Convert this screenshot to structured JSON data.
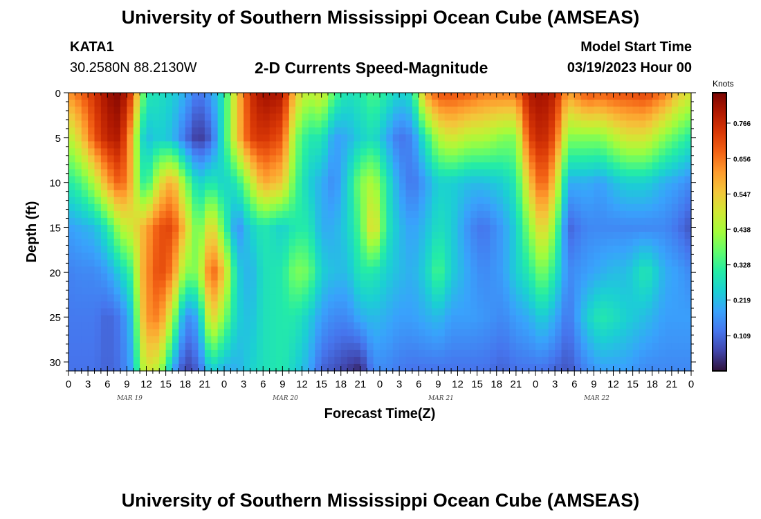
{
  "header": {
    "title": "University of Southern Mississippi Ocean Cube (AMSEAS)",
    "station": "KATA1",
    "coords": "30.2580N  88.2130W",
    "chart_heading": "2-D Currents Speed-Magnitude",
    "model_start_label": "Model Start Time",
    "model_start_value": "03/19/2023 Hour 00"
  },
  "footer": {
    "title": "University of Southern Mississippi Ocean Cube (AMSEAS)"
  },
  "colors": {
    "colormap": [
      "#30123b",
      "#4145ab",
      "#4675ed",
      "#39a2fc",
      "#1bcfd4",
      "#24eca6",
      "#61fc6c",
      "#a4fc3b",
      "#d1e834",
      "#f3c63a",
      "#fe9b2d",
      "#f36315",
      "#d93806",
      "#b11901",
      "#7a0402"
    ]
  },
  "chart_data": {
    "type": "heatmap",
    "title": "2-D Currents Speed-Magnitude",
    "xlabel": "Forecast Time(Z)",
    "ylabel": "Depth (ft)",
    "x_tick_labels": [
      "0",
      "3",
      "6",
      "9",
      "12",
      "15",
      "18",
      "21",
      "0",
      "3",
      "6",
      "9",
      "12",
      "15",
      "18",
      "21",
      "0",
      "3",
      "6",
      "9",
      "12",
      "15",
      "18",
      "21",
      "0",
      "3",
      "6",
      "9",
      "12",
      "15",
      "18",
      "21",
      "0"
    ],
    "x_range_hours": [
      0,
      96
    ],
    "day_labels": [
      {
        "label": "MAR 19",
        "hour": 12
      },
      {
        "label": "MAR 20",
        "hour": 36
      },
      {
        "label": "MAR 21",
        "hour": 60
      },
      {
        "label": "MAR 22",
        "hour": 84
      }
    ],
    "y_ticks": [
      0,
      5,
      10,
      15,
      20,
      25,
      30
    ],
    "y_range_ft": [
      0,
      31
    ],
    "y_inverted": true,
    "colorbar": {
      "unit": "Knots",
      "ticks": [
        "0.766",
        "0.656",
        "0.547",
        "0.438",
        "0.328",
        "0.219",
        "0.109"
      ],
      "tick_values": [
        0.766,
        0.656,
        0.547,
        0.438,
        0.328,
        0.219,
        0.109
      ],
      "range": [
        0.0,
        0.86
      ]
    },
    "profile_rows_depth_ft": [
      0,
      5,
      10,
      15,
      20,
      25,
      31
    ],
    "profiles": [
      {
        "hour": 0,
        "speeds": [
          0.62,
          0.45,
          0.3,
          0.18,
          0.14,
          0.13,
          0.12
        ]
      },
      {
        "hour": 2,
        "speeds": [
          0.68,
          0.55,
          0.35,
          0.2,
          0.15,
          0.13,
          0.12
        ]
      },
      {
        "hour": 4,
        "speeds": [
          0.75,
          0.7,
          0.45,
          0.22,
          0.15,
          0.13,
          0.12
        ]
      },
      {
        "hour": 6,
        "speeds": [
          0.82,
          0.78,
          0.6,
          0.3,
          0.18,
          0.1,
          0.1
        ]
      },
      {
        "hour": 8,
        "speeds": [
          0.85,
          0.8,
          0.7,
          0.45,
          0.25,
          0.13,
          0.12
        ]
      },
      {
        "hour": 10,
        "speeds": [
          0.7,
          0.55,
          0.55,
          0.5,
          0.35,
          0.25,
          0.2
        ]
      },
      {
        "hour": 11,
        "speeds": [
          0.45,
          0.3,
          0.35,
          0.55,
          0.55,
          0.5,
          0.4
        ]
      },
      {
        "hour": 12,
        "speeds": [
          0.3,
          0.22,
          0.3,
          0.6,
          0.62,
          0.62,
          0.5
        ]
      },
      {
        "hour": 14,
        "speeds": [
          0.28,
          0.25,
          0.5,
          0.7,
          0.72,
          0.65,
          0.45
        ]
      },
      {
        "hour": 16,
        "speeds": [
          0.25,
          0.22,
          0.6,
          0.72,
          0.65,
          0.45,
          0.2
        ]
      },
      {
        "hour": 18,
        "speeds": [
          0.2,
          0.12,
          0.4,
          0.55,
          0.4,
          0.15,
          0.05
        ]
      },
      {
        "hour": 20,
        "speeds": [
          0.12,
          0.04,
          0.25,
          0.35,
          0.4,
          0.2,
          0.1
        ]
      },
      {
        "hour": 22,
        "speeds": [
          0.18,
          0.1,
          0.3,
          0.55,
          0.7,
          0.55,
          0.25
        ]
      },
      {
        "hour": 24,
        "speeds": [
          0.3,
          0.3,
          0.25,
          0.35,
          0.55,
          0.4,
          0.2
        ]
      },
      {
        "hour": 26,
        "speeds": [
          0.55,
          0.55,
          0.3,
          0.15,
          0.25,
          0.25,
          0.2
        ]
      },
      {
        "hour": 28,
        "speeds": [
          0.75,
          0.72,
          0.45,
          0.25,
          0.2,
          0.22,
          0.25
        ]
      },
      {
        "hour": 30,
        "speeds": [
          0.82,
          0.75,
          0.6,
          0.3,
          0.28,
          0.28,
          0.28
        ]
      },
      {
        "hour": 33,
        "speeds": [
          0.8,
          0.7,
          0.55,
          0.25,
          0.3,
          0.3,
          0.3
        ]
      },
      {
        "hour": 35,
        "speeds": [
          0.55,
          0.4,
          0.35,
          0.3,
          0.4,
          0.3,
          0.25
        ]
      },
      {
        "hour": 37,
        "speeds": [
          0.45,
          0.3,
          0.25,
          0.3,
          0.38,
          0.25,
          0.2
        ]
      },
      {
        "hour": 39,
        "speeds": [
          0.5,
          0.3,
          0.2,
          0.2,
          0.25,
          0.18,
          0.1
        ]
      },
      {
        "hour": 41,
        "speeds": [
          0.35,
          0.18,
          0.15,
          0.2,
          0.22,
          0.15,
          0.08
        ]
      },
      {
        "hour": 43,
        "speeds": [
          0.28,
          0.2,
          0.25,
          0.25,
          0.22,
          0.15,
          0.05
        ]
      },
      {
        "hour": 45,
        "speeds": [
          0.3,
          0.25,
          0.4,
          0.35,
          0.3,
          0.2,
          0.02
        ]
      },
      {
        "hour": 47,
        "speeds": [
          0.35,
          0.28,
          0.45,
          0.55,
          0.3,
          0.22,
          0.15
        ]
      },
      {
        "hour": 49,
        "speeds": [
          0.3,
          0.2,
          0.3,
          0.3,
          0.25,
          0.2,
          0.15
        ]
      },
      {
        "hour": 51,
        "speeds": [
          0.25,
          0.12,
          0.18,
          0.22,
          0.22,
          0.18,
          0.13
        ]
      },
      {
        "hour": 53,
        "speeds": [
          0.28,
          0.15,
          0.12,
          0.18,
          0.2,
          0.18,
          0.12
        ]
      },
      {
        "hour": 55,
        "speeds": [
          0.6,
          0.3,
          0.18,
          0.22,
          0.25,
          0.2,
          0.12
        ]
      },
      {
        "hour": 57,
        "speeds": [
          0.7,
          0.45,
          0.25,
          0.28,
          0.35,
          0.22,
          0.12
        ]
      },
      {
        "hour": 59,
        "speeds": [
          0.7,
          0.5,
          0.25,
          0.25,
          0.25,
          0.18,
          0.12
        ]
      },
      {
        "hour": 62,
        "speeds": [
          0.68,
          0.45,
          0.22,
          0.15,
          0.18,
          0.18,
          0.12
        ]
      },
      {
        "hour": 64,
        "speeds": [
          0.65,
          0.45,
          0.22,
          0.12,
          0.15,
          0.17,
          0.12
        ]
      },
      {
        "hour": 67,
        "speeds": [
          0.65,
          0.4,
          0.25,
          0.18,
          0.18,
          0.15,
          0.1
        ]
      },
      {
        "hour": 69,
        "speeds": [
          0.65,
          0.4,
          0.3,
          0.25,
          0.25,
          0.18,
          0.12
        ]
      },
      {
        "hour": 71,
        "speeds": [
          0.8,
          0.72,
          0.55,
          0.4,
          0.3,
          0.2,
          0.12
        ]
      },
      {
        "hour": 73,
        "speeds": [
          0.82,
          0.78,
          0.7,
          0.55,
          0.4,
          0.25,
          0.12
        ]
      },
      {
        "hour": 75,
        "speeds": [
          0.78,
          0.7,
          0.55,
          0.4,
          0.3,
          0.2,
          0.1
        ]
      },
      {
        "hour": 77,
        "speeds": [
          0.6,
          0.4,
          0.2,
          0.1,
          0.15,
          0.12,
          0.08
        ]
      },
      {
        "hour": 80,
        "speeds": [
          0.7,
          0.4,
          0.2,
          0.15,
          0.18,
          0.25,
          0.15
        ]
      },
      {
        "hour": 82,
        "speeds": [
          0.68,
          0.4,
          0.18,
          0.15,
          0.2,
          0.3,
          0.18
        ]
      },
      {
        "hour": 84,
        "speeds": [
          0.7,
          0.45,
          0.22,
          0.15,
          0.22,
          0.28,
          0.18
        ]
      },
      {
        "hour": 86,
        "speeds": [
          0.7,
          0.5,
          0.25,
          0.15,
          0.22,
          0.25,
          0.18
        ]
      },
      {
        "hour": 89,
        "speeds": [
          0.72,
          0.5,
          0.25,
          0.15,
          0.3,
          0.22,
          0.15
        ]
      },
      {
        "hour": 92,
        "speeds": [
          0.65,
          0.4,
          0.2,
          0.15,
          0.2,
          0.18,
          0.15
        ]
      },
      {
        "hour": 94,
        "speeds": [
          0.55,
          0.35,
          0.18,
          0.12,
          0.18,
          0.18,
          0.15
        ]
      },
      {
        "hour": 96,
        "speeds": [
          0.5,
          0.3,
          0.15,
          0.08,
          0.15,
          0.18,
          0.15
        ]
      }
    ]
  }
}
